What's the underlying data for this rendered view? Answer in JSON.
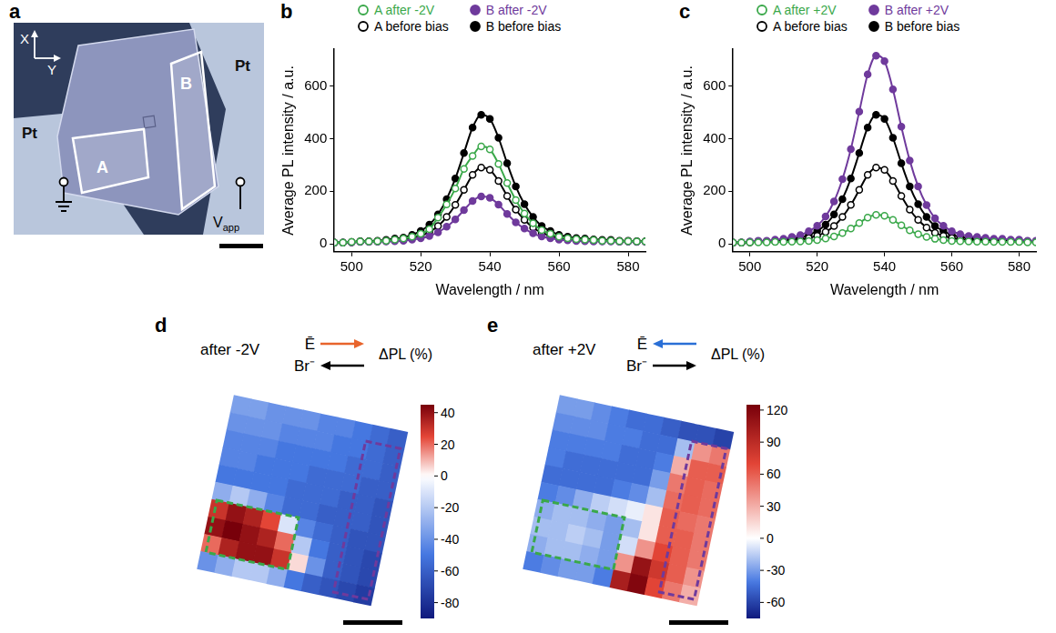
{
  "chart_data": [
    {
      "type": "line",
      "letter": "b",
      "x_label": "Wavelength / nm",
      "y_label": "Average PL intensity / a.u.",
      "x": [
        495,
        497.5,
        500,
        502.5,
        505,
        507.5,
        510,
        512.5,
        515,
        517.5,
        520,
        522.5,
        525,
        527.5,
        530,
        532.5,
        535,
        537.5,
        540,
        542.5,
        545,
        547.5,
        550,
        552.5,
        555,
        557.5,
        560,
        562.5,
        565,
        567.5,
        570,
        572.5,
        575,
        577.5,
        580,
        582.5,
        585
      ],
      "xlim": [
        495,
        585
      ],
      "xticks": [
        500,
        520,
        540,
        560,
        580
      ],
      "ylim": [
        -30,
        740
      ],
      "yticks": [
        0,
        200,
        400,
        600
      ],
      "grid": false,
      "legend": "top",
      "series": [
        {
          "name": "A after -2V",
          "color": "#3aa84a",
          "marker": "open_circle",
          "values": [
            5,
            5,
            7,
            9,
            9,
            10,
            12,
            16,
            20,
            27,
            38,
            56,
            100,
            150,
            210,
            285,
            334,
            370,
            359,
            304,
            231,
            166,
            115,
            78,
            52,
            38,
            27,
            21,
            18,
            16,
            14,
            12,
            12,
            10,
            10,
            9,
            9
          ]
        },
        {
          "name": "B after -2V",
          "color": "#6f3a9c",
          "marker": "circle",
          "values": [
            5,
            5,
            6,
            7,
            7,
            8,
            9,
            10,
            12,
            16,
            21,
            30,
            44,
            65,
            93,
            128,
            163,
            180,
            175,
            149,
            114,
            82,
            58,
            40,
            28,
            21,
            16,
            13,
            11,
            10,
            9,
            9,
            9,
            8,
            8,
            7,
            7
          ]
        },
        {
          "name": "A before bias",
          "color": "#000000",
          "marker": "open_circle",
          "values": [
            5,
            5,
            6,
            8,
            8,
            9,
            11,
            14,
            16,
            22,
            31,
            45,
            68,
            102,
            148,
            205,
            262,
            290,
            281,
            239,
            182,
            130,
            91,
            62,
            42,
            31,
            22,
            18,
            15,
            14,
            12,
            11,
            11,
            9,
            9,
            8,
            8
          ]
        },
        {
          "name": "B before bias",
          "color": "#000000",
          "marker": "circle",
          "values": [
            5,
            5,
            7,
            10,
            10,
            12,
            15,
            20,
            24,
            34,
            49,
            73,
            112,
            170,
            248,
            345,
            442,
            490,
            475,
            403,
            306,
            218,
            151,
            102,
            68,
            49,
            34,
            27,
            22,
            20,
            17,
            15,
            15,
            12,
            12,
            10,
            10
          ]
        }
      ]
    },
    {
      "type": "line",
      "letter": "c",
      "x_label": "Wavelength / nm",
      "y_label": "Average PL intensity / a.u.",
      "x": [
        495,
        497.5,
        500,
        502.5,
        505,
        507.5,
        510,
        512.5,
        515,
        517.5,
        520,
        522.5,
        525,
        527.5,
        530,
        532.5,
        535,
        537.5,
        540,
        542.5,
        545,
        547.5,
        550,
        552.5,
        555,
        557.5,
        560,
        562.5,
        565,
        567.5,
        570,
        572.5,
        575,
        577.5,
        580,
        582.5,
        585
      ],
      "xlim": [
        495,
        585
      ],
      "xticks": [
        500,
        520,
        540,
        560,
        580
      ],
      "ylim": [
        -30,
        740
      ],
      "yticks": [
        0,
        200,
        400,
        600
      ],
      "grid": false,
      "legend": "top",
      "series": [
        {
          "name": "A after +2V",
          "color": "#3aa84a",
          "marker": "open_circle",
          "values": [
            5,
            5,
            6,
            6,
            6,
            7,
            7,
            8,
            9,
            11,
            14,
            20,
            28,
            41,
            58,
            79,
            100,
            110,
            107,
            91,
            70,
            51,
            37,
            26,
            19,
            14,
            11,
            10,
            9,
            8,
            8,
            7,
            7,
            7,
            7,
            6,
            6
          ]
        },
        {
          "name": "B after +2V",
          "color": "#6f3a9c",
          "marker": "circle",
          "values": [
            5,
            5,
            9,
            12,
            12,
            16,
            19,
            26,
            33,
            48,
            69,
            104,
            161,
            246,
            360,
            502,
            644,
            715,
            694,
            587,
            445,
            317,
            218,
            147,
            97,
            69,
            48,
            37,
            30,
            26,
            23,
            19,
            19,
            16,
            16,
            12,
            12
          ]
        },
        {
          "name": "A before bias",
          "color": "#000000",
          "marker": "open_circle",
          "values": [
            5,
            5,
            6,
            8,
            8,
            9,
            11,
            14,
            16,
            22,
            31,
            45,
            68,
            102,
            148,
            205,
            262,
            290,
            281,
            239,
            182,
            130,
            91,
            62,
            42,
            31,
            22,
            18,
            15,
            14,
            12,
            11,
            11,
            9,
            9,
            8,
            8
          ]
        },
        {
          "name": "B before bias",
          "color": "#000000",
          "marker": "circle",
          "values": [
            5,
            5,
            7,
            10,
            10,
            12,
            15,
            20,
            24,
            34,
            49,
            73,
            112,
            170,
            248,
            345,
            442,
            490,
            475,
            403,
            306,
            218,
            151,
            102,
            68,
            49,
            34,
            27,
            22,
            20,
            17,
            15,
            15,
            12,
            12,
            10,
            10
          ]
        }
      ]
    }
  ],
  "panel_a": {
    "letter": "a",
    "electrodes": [
      "Pt",
      "Pt"
    ],
    "axis_labels": {
      "x": "X",
      "y": "Y"
    },
    "regions": [
      "A",
      "B"
    ],
    "voltage": {
      "symbol": "V",
      "subscript": "app"
    }
  },
  "maps": [
    {
      "letter": "d",
      "title": "after -2V",
      "field_label": "Ē",
      "field_direction": "right",
      "field_color": "#e8642c",
      "ion_label": "Br⁻",
      "ion_direction": "left",
      "colorbar": {
        "title": "ΔPL (%)",
        "range": [
          -90,
          45
        ],
        "ticks": [
          -80,
          -60,
          -40,
          -20,
          0,
          20,
          40
        ]
      },
      "cells": [
        [
          -35,
          -35,
          -40,
          -40,
          -40,
          -45,
          -45,
          -50,
          -55,
          -60
        ],
        [
          -40,
          -40,
          -40,
          -45,
          -45,
          -45,
          -50,
          -50,
          -55,
          -60
        ],
        [
          -45,
          -45,
          -45,
          -50,
          -50,
          -50,
          -50,
          -55,
          -55,
          -60
        ],
        [
          -45,
          -45,
          -50,
          -50,
          -50,
          -55,
          -55,
          -55,
          -60,
          -60
        ],
        [
          -50,
          -50,
          -50,
          -50,
          -55,
          -55,
          -55,
          -60,
          -60,
          -65
        ],
        [
          -30,
          -20,
          -30,
          -45,
          -55,
          -55,
          -60,
          -60,
          -60,
          -65
        ],
        [
          30,
          40,
          35,
          25,
          -10,
          -45,
          -55,
          -60,
          -65,
          -65
        ],
        [
          40,
          45,
          40,
          35,
          20,
          -20,
          -50,
          -60,
          -65,
          -70
        ],
        [
          20,
          35,
          40,
          40,
          30,
          5,
          -40,
          -60,
          -65,
          -70
        ],
        [
          -40,
          -30,
          -20,
          -20,
          -30,
          -50,
          -60,
          -65,
          -70,
          -75
        ]
      ]
    },
    {
      "letter": "e",
      "title": "after +2V",
      "field_label": "Ē",
      "field_direction": "left",
      "field_color": "#2a6fd6",
      "ion_label": "Br⁻",
      "ion_direction": "right",
      "colorbar": {
        "title": "ΔPL (%)",
        "range": [
          -75,
          125
        ],
        "ticks": [
          -60,
          -30,
          0,
          30,
          60,
          90,
          120
        ]
      },
      "cells": [
        [
          -30,
          -30,
          -35,
          -40,
          -45,
          -45,
          -50,
          -55,
          -55,
          -60
        ],
        [
          -35,
          -35,
          -35,
          -40,
          -40,
          -45,
          -45,
          -20,
          40,
          50
        ],
        [
          -40,
          -40,
          -40,
          -40,
          -45,
          -45,
          -40,
          30,
          60,
          60
        ],
        [
          -40,
          -45,
          -45,
          -45,
          -45,
          -45,
          -30,
          50,
          60,
          55
        ],
        [
          -45,
          -45,
          -45,
          -45,
          -40,
          -35,
          -20,
          55,
          60,
          55
        ],
        [
          -40,
          -35,
          -25,
          -15,
          -10,
          -5,
          10,
          60,
          55,
          50
        ],
        [
          -25,
          -20,
          -20,
          -25,
          -30,
          -20,
          10,
          60,
          60,
          50
        ],
        [
          -20,
          -20,
          -15,
          -20,
          -30,
          -10,
          40,
          70,
          60,
          50
        ],
        [
          -25,
          -20,
          -20,
          -25,
          -30,
          40,
          110,
          80,
          60,
          40
        ],
        [
          -40,
          -35,
          -30,
          -30,
          -40,
          100,
          120,
          70,
          50,
          30
        ]
      ]
    }
  ]
}
